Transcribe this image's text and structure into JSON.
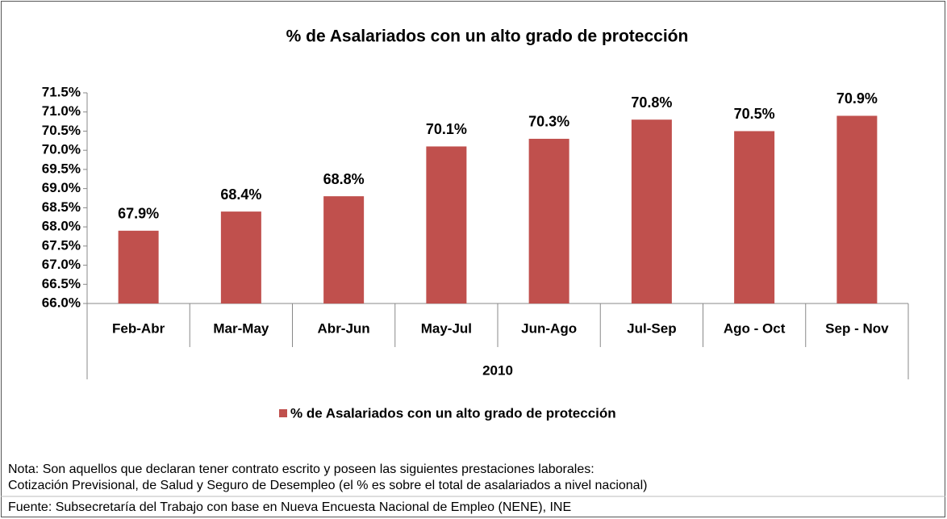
{
  "chart_data": {
    "type": "bar",
    "title": "% de Asalariados con un alto grado de protección",
    "categories": [
      "Feb-Abr",
      "Mar-May",
      "Abr-Jun",
      "May-Jul",
      "Jun-Ago",
      "Jul-Sep",
      "Ago - Oct",
      "Sep - Nov"
    ],
    "group_label": "2010",
    "series": [
      {
        "name": "% de Asalariados con un alto grado de protección",
        "color": "#c0504d",
        "values": [
          67.9,
          68.4,
          68.8,
          70.1,
          70.3,
          70.8,
          70.5,
          70.9
        ],
        "value_labels": [
          "67.9%",
          "68.4%",
          "68.8%",
          "70.1%",
          "70.3%",
          "70.8%",
          "70.5%",
          "70.9%"
        ]
      }
    ],
    "ylim": [
      66,
      71.5
    ],
    "yticks": [
      {
        "value": 66,
        "label": "66.0%"
      },
      {
        "value": 66.5,
        "label": "66.5%"
      },
      {
        "value": 67,
        "label": "67.0%"
      },
      {
        "value": 67.5,
        "label": "67.5%"
      },
      {
        "value": 68,
        "label": "68.0%"
      },
      {
        "value": 68.5,
        "label": "68.5%"
      },
      {
        "value": 69,
        "label": "69.0%"
      },
      {
        "value": 69.5,
        "label": "69.5%"
      },
      {
        "value": 70,
        "label": "70.0%"
      },
      {
        "value": 70.5,
        "label": "70.5%"
      },
      {
        "value": 71,
        "label": "71.0%"
      },
      {
        "value": 71.5,
        "label": "71.5%"
      }
    ],
    "grid": false,
    "legend": "bottom",
    "notes": [
      "Nota: Son aquellos que declaran tener contrato escrito y poseen las siguientes prestaciones laborales:",
      "Cotización Previsional, de Salud y Seguro de Desempleo (el % es sobre el total de asalariados a nivel nacional)"
    ],
    "source": "Fuente: Subsecretaría del Trabajo con base en Nueva Encuesta Nacional de Empleo (NENE), INE"
  }
}
